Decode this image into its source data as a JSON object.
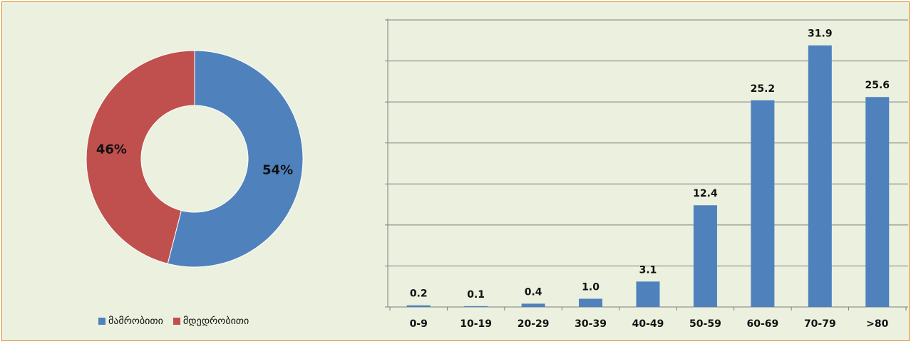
{
  "colors": {
    "series_primary": "#4f81bd",
    "series_secondary": "#c0504d",
    "panel_bg": "#ebf1de",
    "frame_border": "#e08a2a"
  },
  "chart_data": [
    {
      "type": "pie",
      "variant": "donut",
      "slices": [
        {
          "name": "მამრობითი",
          "value": 54,
          "label": "54%",
          "color": "#4f81bd"
        },
        {
          "name": "მდედრობითი",
          "value": 46,
          "label": "46%",
          "color": "#c0504d"
        }
      ],
      "legend": {
        "placement": "bottom",
        "entries": [
          "მამრობითი",
          "მდედრობითი"
        ]
      }
    },
    {
      "type": "bar",
      "categories": [
        "0-9",
        "10-19",
        "20-29",
        "30-39",
        "40-49",
        "50-59",
        "60-69",
        "70-79",
        ">80"
      ],
      "values": [
        0.2,
        0.1,
        0.4,
        1.0,
        3.1,
        12.4,
        25.2,
        31.9,
        25.6
      ],
      "data_labels": [
        "0.2",
        "0.1",
        "0.4",
        "1.0",
        "3.1",
        "12.4",
        "25.2",
        "31.9",
        "25.6"
      ],
      "ylim": [
        0,
        35
      ],
      "grid": true,
      "color": "#4f81bd"
    }
  ]
}
